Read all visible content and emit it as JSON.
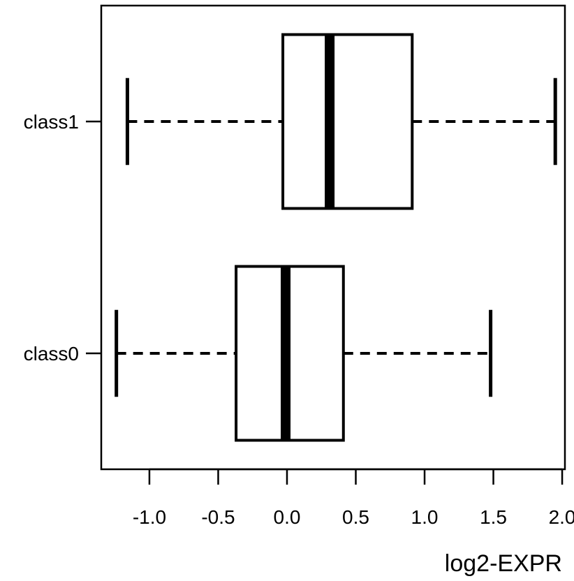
{
  "chart_data": {
    "type": "boxplot",
    "orientation": "horizontal",
    "xlabel": "log2-EXPR",
    "ylabel": "",
    "xlim": [
      -1.35,
      2.02
    ],
    "xticks": [
      -1.0,
      -0.5,
      0.0,
      0.5,
      1.0,
      1.5,
      2.0
    ],
    "xtick_labels": [
      "-1.0",
      "-0.5",
      "0.0",
      "0.5",
      "1.0",
      "1.5",
      "2.0"
    ],
    "grid": false,
    "categories": [
      "class0",
      "class1"
    ],
    "boxes": [
      {
        "label": "class0",
        "whisker_low": -1.24,
        "q1": -0.37,
        "median": -0.01,
        "q3": 0.41,
        "whisker_high": 1.48
      },
      {
        "label": "class1",
        "whisker_low": -1.16,
        "q1": -0.03,
        "median": 0.31,
        "q3": 0.91,
        "whisker_high": 1.95
      }
    ],
    "colors": {
      "stroke": "#000000",
      "box_fill": "#ffffff"
    }
  }
}
